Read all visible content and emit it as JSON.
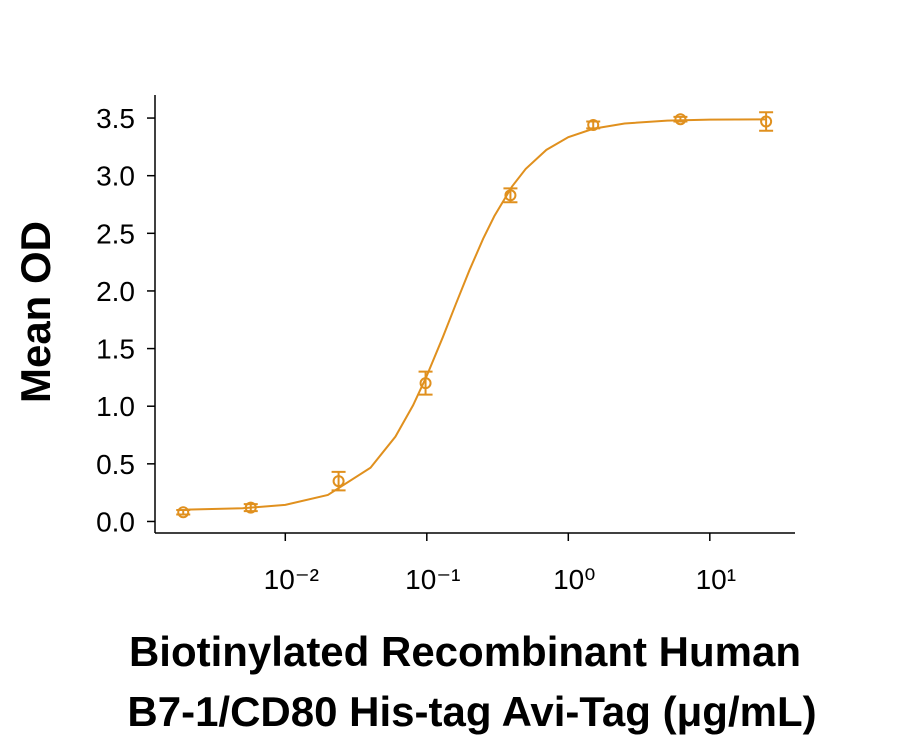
{
  "chart_data": {
    "type": "scatter",
    "ylabel": "Mean OD",
    "xlabel": [
      "Biotinylated Recombinant Human",
      "B7-1/CD80 His-tag Avi-Tag (μg/mL)"
    ],
    "color": "#E0901E",
    "xscale": "log",
    "xlim": [
      0.0012,
      40
    ],
    "xticks": [
      {
        "value": 0.01,
        "label": "10⁻²"
      },
      {
        "value": 0.1,
        "label": "10⁻¹"
      },
      {
        "value": 1,
        "label": "10⁰"
      },
      {
        "value": 10,
        "label": "10¹"
      }
    ],
    "ylim": [
      -0.1,
      3.7
    ],
    "yticks": [
      {
        "value": 0,
        "label": "0.0"
      },
      0.5,
      {
        "value": 1,
        "label": "1.0"
      },
      1.5,
      {
        "value": 2,
        "label": "2.0"
      },
      2.5,
      {
        "value": 3,
        "label": "3.0"
      },
      3.5
    ],
    "points": {
      "x": [
        0.0019,
        0.0057,
        0.0238,
        0.098,
        0.39,
        1.5,
        6.2,
        25
      ],
      "values": [
        0.08,
        0.12,
        0.35,
        1.2,
        2.83,
        3.44,
        3.49,
        3.47
      ],
      "errors": [
        0.02,
        0.03,
        0.08,
        0.1,
        0.06,
        0.03,
        0.02,
        0.08
      ]
    },
    "curve": {
      "x": [
        0.002,
        0.005,
        0.01,
        0.02,
        0.04,
        0.06,
        0.08,
        0.1,
        0.13,
        0.16,
        0.2,
        0.25,
        0.3,
        0.4,
        0.5,
        0.7,
        1,
        1.5,
        2.5,
        5,
        10,
        25
      ],
      "values": [
        0.103,
        0.115,
        0.144,
        0.23,
        0.466,
        0.736,
        1.008,
        1.264,
        1.601,
        1.883,
        2.179,
        2.452,
        2.649,
        2.906,
        3.059,
        3.224,
        3.334,
        3.407,
        3.453,
        3.478,
        3.486,
        3.489
      ]
    }
  }
}
